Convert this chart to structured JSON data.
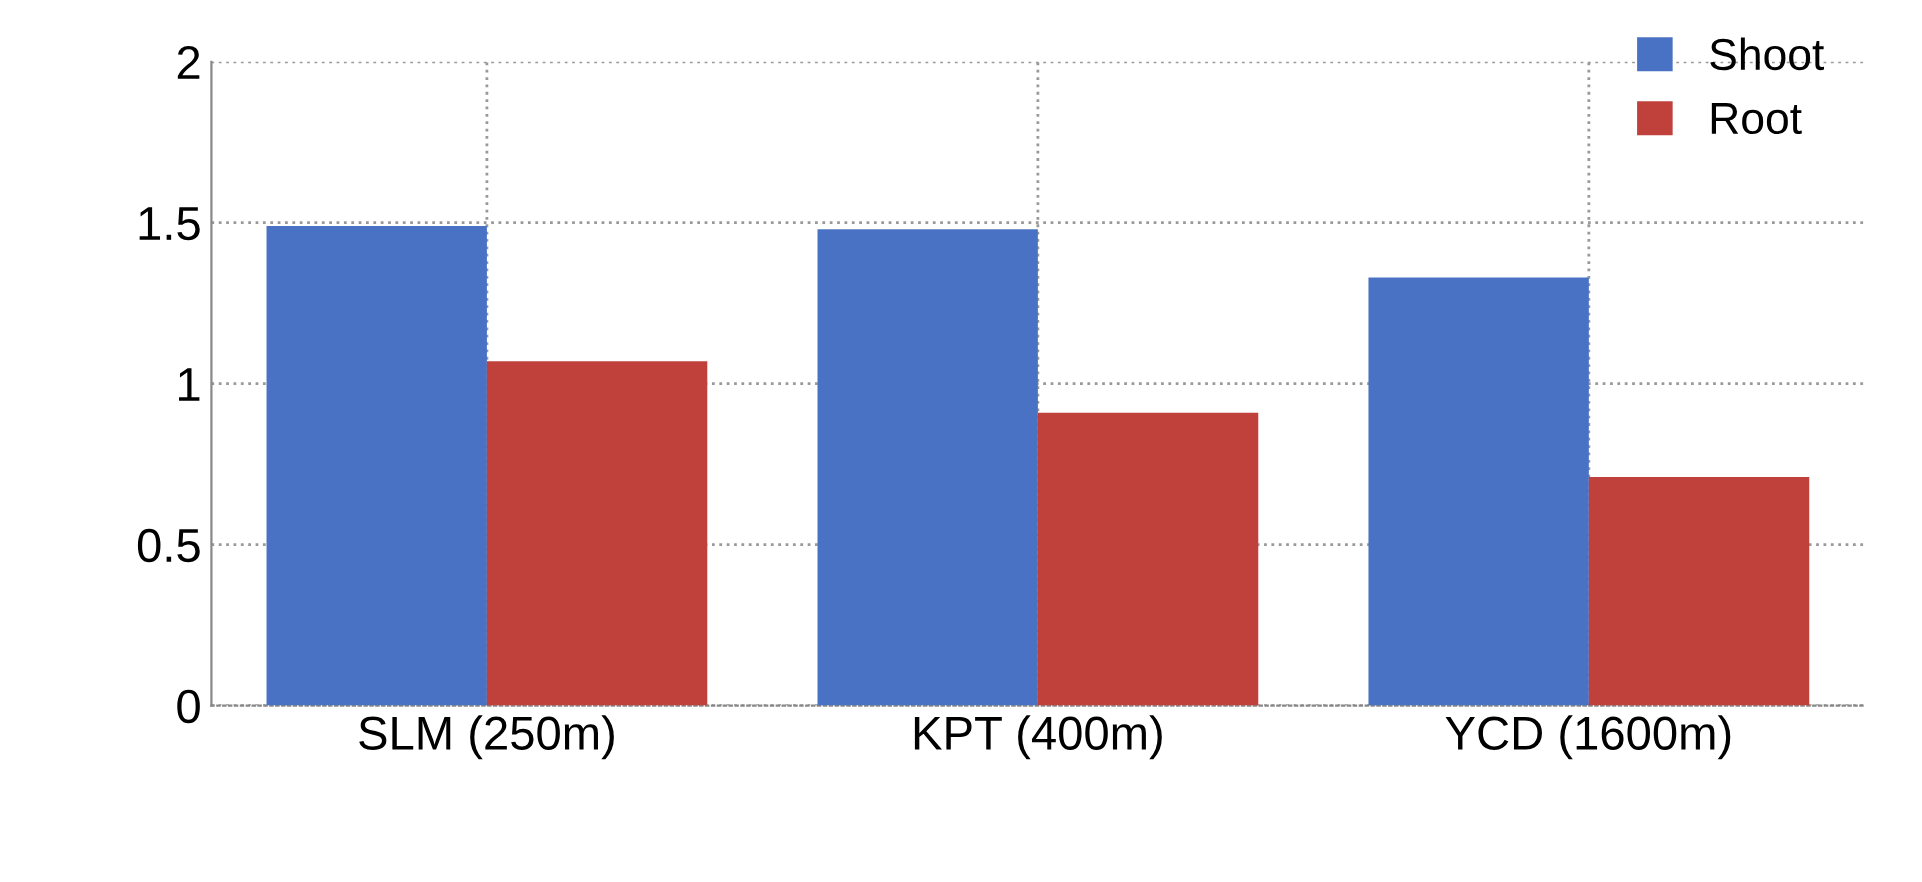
{
  "chart_data": {
    "type": "bar",
    "categories": [
      "SLM (250m)",
      "KPT (400m)",
      "YCD (1600m)"
    ],
    "series": [
      {
        "name": "Shoot",
        "color": "#4a72c4",
        "values": [
          1.49,
          1.48,
          1.33
        ]
      },
      {
        "name": "Root",
        "color": "#c0403c",
        "values": [
          1.07,
          0.91,
          0.71
        ]
      }
    ],
    "ylim": [
      0,
      2
    ],
    "yticks": [
      0,
      0.5,
      1,
      1.5,
      2
    ],
    "grid": true,
    "legend": "top right"
  }
}
